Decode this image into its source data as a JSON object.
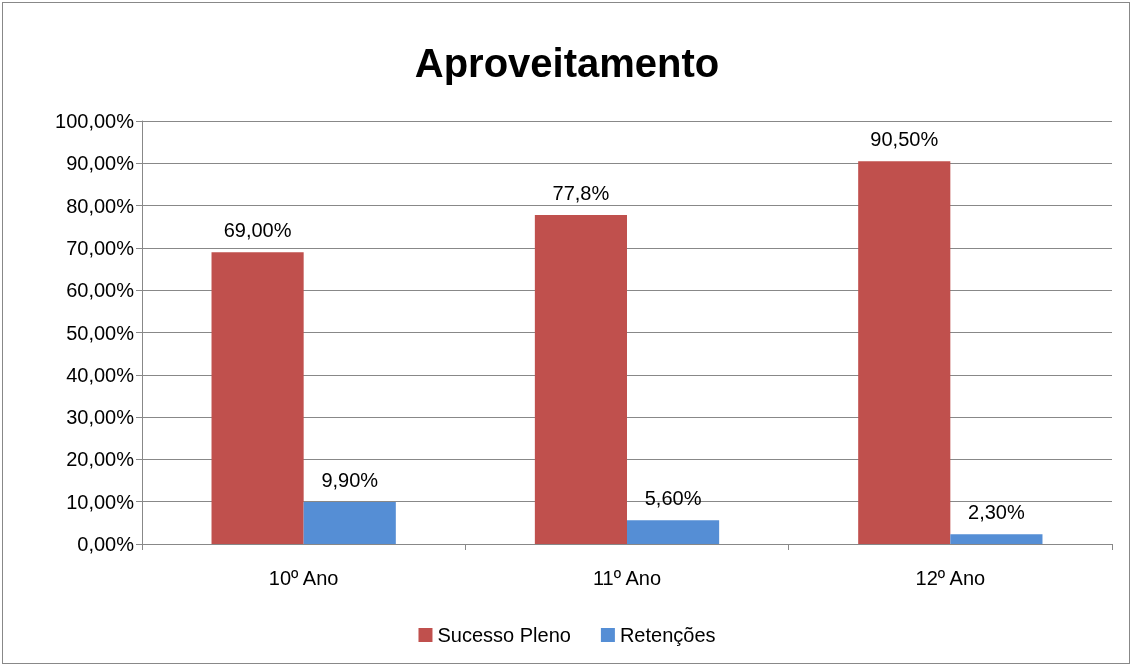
{
  "chart_data": {
    "type": "bar",
    "title": "Aproveitamento",
    "categories": [
      "10º Ano",
      "11º Ano",
      "12º Ano"
    ],
    "series": [
      {
        "name": "Sucesso Pleno",
        "color": "#c0504d",
        "values": [
          69,
          77.8,
          90.5
        ],
        "value_labels": [
          "69,00%",
          "77,8%",
          "90,50%"
        ]
      },
      {
        "name": "Retenções",
        "color": "#558ed5",
        "values": [
          9.9,
          5.6,
          2.3
        ],
        "value_labels": [
          "9,90%",
          "5,60%",
          "2,30%"
        ]
      }
    ],
    "ylim": [
      0,
      100
    ],
    "yticks": [
      {
        "value": 0,
        "label": "0,00%"
      },
      {
        "value": 10,
        "label": "10,00%"
      },
      {
        "value": 20,
        "label": "20,00%"
      },
      {
        "value": 30,
        "label": "30,00%"
      },
      {
        "value": 40,
        "label": "40,00%"
      },
      {
        "value": 50,
        "label": "50,00%"
      },
      {
        "value": 60,
        "label": "60,00%"
      },
      {
        "value": 70,
        "label": "70,00%"
      },
      {
        "value": 80,
        "label": "80,00%"
      },
      {
        "value": 90,
        "label": "90,00%"
      },
      {
        "value": 100,
        "label": "100,00%"
      }
    ],
    "grid": "y",
    "legend": "bottom"
  }
}
